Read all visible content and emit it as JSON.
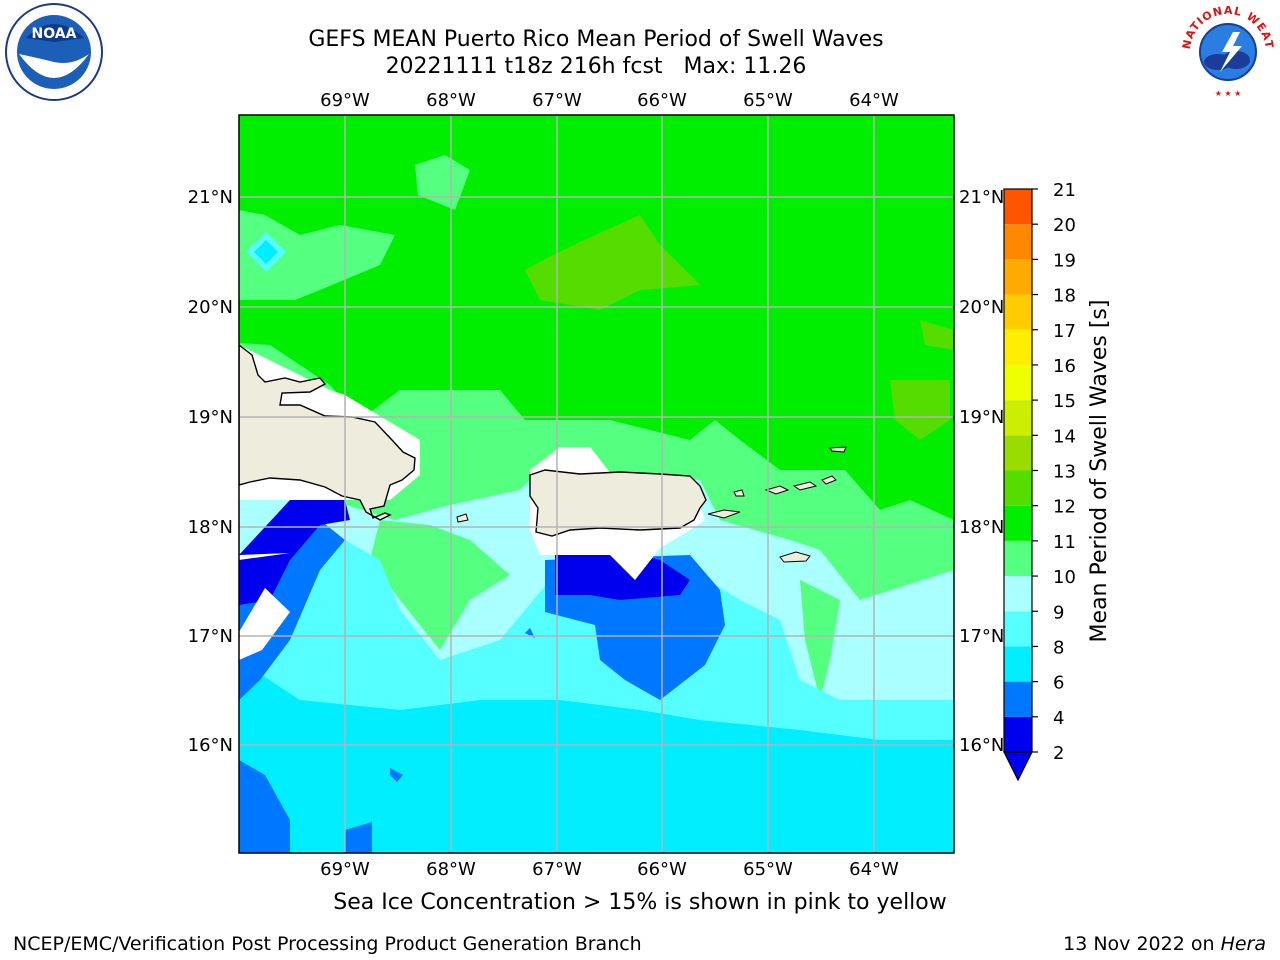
{
  "header": {
    "title": "GEFS MEAN Puerto Rico Mean Period of Swell Waves",
    "subtitle_run": "20221111 t18z 216h fcst",
    "subtitle_max": "Max: 11.26"
  },
  "map": {
    "lon_labels": [
      "69°W",
      "68°W",
      "67°W",
      "66°W",
      "65°W",
      "64°W"
    ],
    "lat_labels": [
      "21°N",
      "20°N",
      "19°N",
      "18°N",
      "17°N",
      "16°N"
    ],
    "colors": {
      "land": "#eeecdc",
      "coast": "#000000",
      "grid": "#b4b4b4"
    }
  },
  "colorbar": {
    "label": "Mean Period of Swell Waves [s]",
    "ticks": [
      "2",
      "4",
      "6",
      "8",
      "9",
      "10",
      "11",
      "12",
      "13",
      "14",
      "15",
      "16",
      "17",
      "18",
      "19",
      "20",
      "21"
    ],
    "colors": [
      "#0000ee",
      "#0077ff",
      "#00eeff",
      "#55ffff",
      "#aaffff",
      "#55ff80",
      "#00ee00",
      "#55dd00",
      "#99dd00",
      "#ccee00",
      "#eeff00",
      "#ffee00",
      "#ffcc00",
      "#ffaa00",
      "#ff8800",
      "#ff5500",
      "#ff2200",
      "#ee0000"
    ]
  },
  "footer": {
    "note": "Sea Ice Concentration > 15% is shown in pink to yellow",
    "credit": "NCEP/EMC/Verification Post Processing Product Generation Branch",
    "date": "13 Nov 2022 on",
    "host": "Hera"
  },
  "logos": {
    "left": "NOAA",
    "right": "NATIONAL WEATHER SERVICE"
  }
}
